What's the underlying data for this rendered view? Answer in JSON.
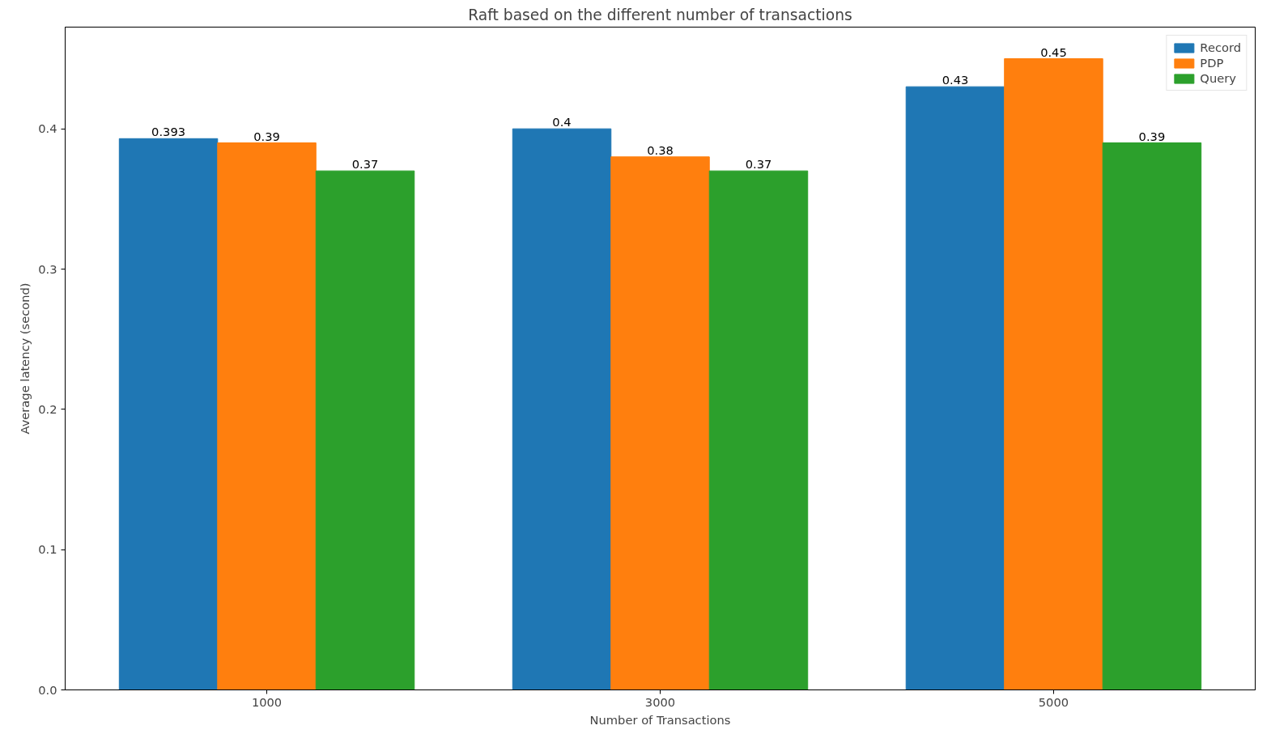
{
  "chart_data": {
    "type": "bar",
    "title": "Raft based on the different number of transactions",
    "xlabel": "Number of Transactions",
    "ylabel": "Average latency (second)",
    "categories": [
      "1000",
      "3000",
      "5000"
    ],
    "series": [
      {
        "name": "Record",
        "color": "#1f77b4",
        "values": [
          0.393,
          0.4,
          0.43
        ]
      },
      {
        "name": "PDP",
        "color": "#ff7f0e",
        "values": [
          0.39,
          0.38,
          0.45
        ]
      },
      {
        "name": "Query",
        "color": "#2ca02c",
        "values": [
          0.37,
          0.37,
          0.39
        ]
      }
    ],
    "ylim": [
      0,
      0.4725
    ],
    "yticks": [
      {
        "value": 0,
        "label": "0.0"
      },
      0.1,
      0.2,
      0.3,
      0.4
    ],
    "grid": false,
    "legend": "top right",
    "data_labels": true
  }
}
